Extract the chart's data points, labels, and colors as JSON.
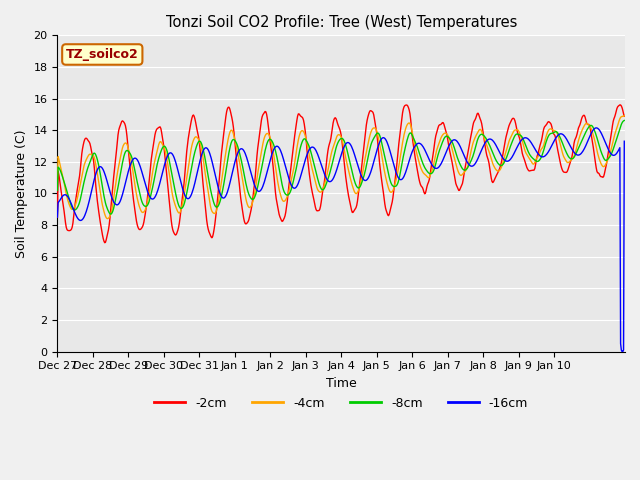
{
  "title": "Tonzi Soil CO2 Profile: Tree (West) Temperatures",
  "xlabel": "Time",
  "ylabel": "Soil Temperature (C)",
  "ylim": [
    0,
    20
  ],
  "yticks": [
    0,
    2,
    4,
    6,
    8,
    10,
    12,
    14,
    16,
    18,
    20
  ],
  "xtick_labels": [
    "Dec 27",
    "Dec 28",
    "Dec 29",
    "Dec 30",
    "Dec 31",
    "Jan 1",
    "Jan 2",
    "Jan 3",
    "Jan 4",
    "Jan 5",
    "Jan 6",
    "Jan 7",
    "Jan 8",
    "Jan 9",
    "Jan 10"
  ],
  "colors": {
    "-2cm": "#ff0000",
    "-4cm": "#ffa500",
    "-8cm": "#00cc00",
    "-16cm": "#0000ff"
  },
  "legend_labels": [
    "-2cm",
    "-4cm",
    "-8cm",
    "-16cm"
  ],
  "plot_bg_color": "#e8e8e8",
  "fig_bg_color": "#f0f0f0",
  "label_box_text": "TZ_soilco2",
  "label_box_bg": "#ffffcc",
  "label_box_edge": "#cc6600"
}
